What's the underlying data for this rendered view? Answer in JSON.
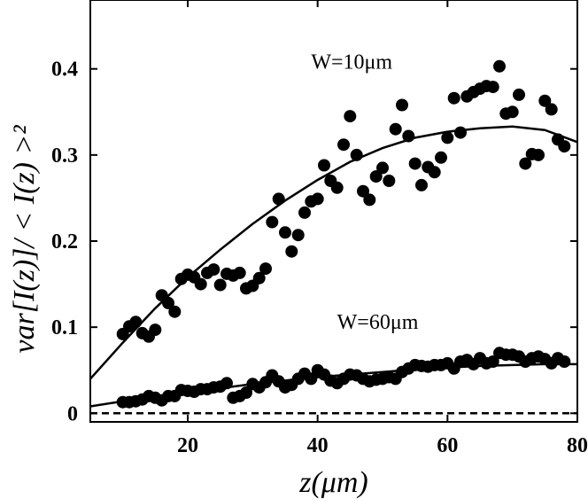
{
  "chart_data": {
    "type": "scatter",
    "title": "",
    "xlabel": "z(μm)",
    "ylabel": "var[I(z)]/ < I(z) >²",
    "xlim": [
      5,
      80
    ],
    "ylim": [
      -0.01,
      0.48
    ],
    "xticks": [
      20,
      40,
      60,
      80
    ],
    "yticks": [
      0,
      0.1,
      0.2,
      0.3,
      0.4
    ],
    "ytick_labels": [
      "0",
      "0.1",
      "0.2",
      "0.3",
      "0.4"
    ],
    "grid": false,
    "annotations": [
      {
        "text": "W=10μm",
        "x": 39,
        "y": 0.4
      },
      {
        "text": "W=60μm",
        "x": 43,
        "y": 0.098
      }
    ],
    "series": [
      {
        "name": "W=10μm data",
        "kind": "scatter",
        "color": "#000000",
        "points": [
          [
            10,
            0.092
          ],
          [
            11,
            0.101
          ],
          [
            12,
            0.106
          ],
          [
            13,
            0.093
          ],
          [
            14,
            0.089
          ],
          [
            15,
            0.097
          ],
          [
            16,
            0.137
          ],
          [
            17,
            0.128
          ],
          [
            18,
            0.118
          ],
          [
            19,
            0.156
          ],
          [
            20,
            0.161
          ],
          [
            21,
            0.158
          ],
          [
            22,
            0.15
          ],
          [
            23,
            0.163
          ],
          [
            24,
            0.167
          ],
          [
            25,
            0.149
          ],
          [
            26,
            0.162
          ],
          [
            27,
            0.16
          ],
          [
            28,
            0.163
          ],
          [
            29,
            0.145
          ],
          [
            30,
            0.148
          ],
          [
            31,
            0.157
          ],
          [
            32,
            0.168
          ],
          [
            33,
            0.222
          ],
          [
            34,
            0.249
          ],
          [
            35,
            0.21
          ],
          [
            36,
            0.188
          ],
          [
            37,
            0.207
          ],
          [
            38,
            0.233
          ],
          [
            39,
            0.246
          ],
          [
            40,
            0.249
          ],
          [
            41,
            0.288
          ],
          [
            42,
            0.27
          ],
          [
            43,
            0.262
          ],
          [
            44,
            0.312
          ],
          [
            45,
            0.345
          ],
          [
            46,
            0.3
          ],
          [
            47,
            0.258
          ],
          [
            48,
            0.248
          ],
          [
            49,
            0.275
          ],
          [
            50,
            0.285
          ],
          [
            51,
            0.27
          ],
          [
            52,
            0.33
          ],
          [
            53,
            0.358
          ],
          [
            54,
            0.322
          ],
          [
            55,
            0.29
          ],
          [
            56,
            0.265
          ],
          [
            57,
            0.286
          ],
          [
            58,
            0.28
          ],
          [
            59,
            0.297
          ],
          [
            60,
            0.32
          ],
          [
            61,
            0.366
          ],
          [
            62,
            0.326
          ],
          [
            63,
            0.368
          ],
          [
            64,
            0.373
          ],
          [
            65,
            0.377
          ],
          [
            66,
            0.38
          ],
          [
            67,
            0.379
          ],
          [
            68,
            0.403
          ],
          [
            69,
            0.348
          ],
          [
            70,
            0.35
          ],
          [
            71,
            0.37
          ],
          [
            72,
            0.29
          ],
          [
            73,
            0.301
          ],
          [
            74,
            0.3
          ],
          [
            75,
            0.363
          ],
          [
            76,
            0.353
          ],
          [
            77,
            0.318
          ],
          [
            78,
            0.31
          ]
        ]
      },
      {
        "name": "W=10μm fit",
        "kind": "line",
        "color": "#000000",
        "points": [
          [
            5,
            0.04
          ],
          [
            10,
            0.082
          ],
          [
            15,
            0.122
          ],
          [
            20,
            0.158
          ],
          [
            25,
            0.19
          ],
          [
            30,
            0.22
          ],
          [
            35,
            0.247
          ],
          [
            40,
            0.271
          ],
          [
            45,
            0.292
          ],
          [
            50,
            0.308
          ],
          [
            55,
            0.32
          ],
          [
            60,
            0.327
          ],
          [
            65,
            0.331
          ],
          [
            70,
            0.333
          ],
          [
            75,
            0.329
          ],
          [
            80,
            0.315
          ]
        ]
      },
      {
        "name": "W=60μm data",
        "kind": "scatter",
        "color": "#000000",
        "points": [
          [
            10,
            0.013
          ],
          [
            11,
            0.013
          ],
          [
            12,
            0.014
          ],
          [
            13,
            0.016
          ],
          [
            14,
            0.02
          ],
          [
            15,
            0.018
          ],
          [
            16,
            0.015
          ],
          [
            17,
            0.02
          ],
          [
            18,
            0.02
          ],
          [
            19,
            0.027
          ],
          [
            20,
            0.026
          ],
          [
            21,
            0.025
          ],
          [
            22,
            0.028
          ],
          [
            23,
            0.028
          ],
          [
            24,
            0.03
          ],
          [
            25,
            0.031
          ],
          [
            26,
            0.035
          ],
          [
            27,
            0.018
          ],
          [
            28,
            0.02
          ],
          [
            29,
            0.024
          ],
          [
            30,
            0.034
          ],
          [
            31,
            0.03
          ],
          [
            32,
            0.036
          ],
          [
            33,
            0.044
          ],
          [
            34,
            0.037
          ],
          [
            35,
            0.03
          ],
          [
            36,
            0.033
          ],
          [
            37,
            0.04
          ],
          [
            38,
            0.046
          ],
          [
            39,
            0.04
          ],
          [
            40,
            0.05
          ],
          [
            41,
            0.045
          ],
          [
            42,
            0.038
          ],
          [
            43,
            0.035
          ],
          [
            44,
            0.04
          ],
          [
            45,
            0.045
          ],
          [
            46,
            0.044
          ],
          [
            47,
            0.04
          ],
          [
            48,
            0.037
          ],
          [
            49,
            0.039
          ],
          [
            50,
            0.04
          ],
          [
            51,
            0.042
          ],
          [
            52,
            0.04
          ],
          [
            53,
            0.048
          ],
          [
            54,
            0.052
          ],
          [
            55,
            0.056
          ],
          [
            56,
            0.055
          ],
          [
            57,
            0.054
          ],
          [
            58,
            0.056
          ],
          [
            59,
            0.056
          ],
          [
            60,
            0.058
          ],
          [
            61,
            0.052
          ],
          [
            62,
            0.06
          ],
          [
            63,
            0.062
          ],
          [
            64,
            0.057
          ],
          [
            65,
            0.064
          ],
          [
            66,
            0.058
          ],
          [
            67,
            0.06
          ],
          [
            68,
            0.07
          ],
          [
            69,
            0.068
          ],
          [
            70,
            0.068
          ],
          [
            71,
            0.066
          ],
          [
            72,
            0.06
          ],
          [
            73,
            0.064
          ],
          [
            74,
            0.066
          ],
          [
            75,
            0.063
          ],
          [
            76,
            0.058
          ],
          [
            77,
            0.064
          ],
          [
            78,
            0.06
          ]
        ]
      },
      {
        "name": "W=60μm fit",
        "kind": "line",
        "color": "#000000",
        "points": [
          [
            5,
            0.008
          ],
          [
            10,
            0.014
          ],
          [
            15,
            0.019
          ],
          [
            20,
            0.024
          ],
          [
            25,
            0.029
          ],
          [
            30,
            0.034
          ],
          [
            35,
            0.038
          ],
          [
            40,
            0.042
          ],
          [
            45,
            0.045
          ],
          [
            50,
            0.048
          ],
          [
            55,
            0.051
          ],
          [
            60,
            0.053
          ],
          [
            65,
            0.055
          ],
          [
            70,
            0.056
          ],
          [
            75,
            0.057
          ],
          [
            80,
            0.057
          ]
        ]
      },
      {
        "name": "zero baseline",
        "kind": "dashed",
        "color": "#000000",
        "points": [
          [
            5,
            0
          ],
          [
            80,
            0
          ]
        ]
      }
    ]
  }
}
